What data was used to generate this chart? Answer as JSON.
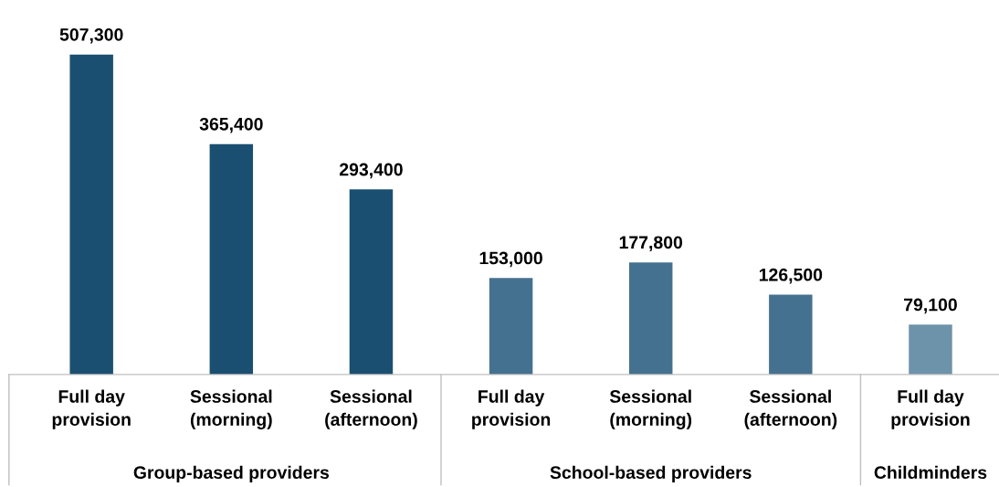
{
  "chart_data": {
    "type": "bar",
    "categories": [
      "Full day provision",
      "Sessional (morning)",
      "Sessional (afternoon)",
      "Full day provision",
      "Sessional (morning)",
      "Sessional (afternoon)",
      "Full day provision"
    ],
    "values": [
      507300,
      365400,
      293400,
      153000,
      177800,
      126500,
      79100
    ],
    "colors": [
      "#1a4f72",
      "#1a4f72",
      "#1a4f72",
      "#44718f",
      "#44718f",
      "#44718f",
      "#6d93ab"
    ],
    "value_labels": [
      "507,300",
      "365,400",
      "293,400",
      "153,000",
      "177,800",
      "126,500",
      "79,100"
    ],
    "annotations": [
      "Group-based providers",
      "School-based providers",
      "Childminders"
    ]
  }
}
